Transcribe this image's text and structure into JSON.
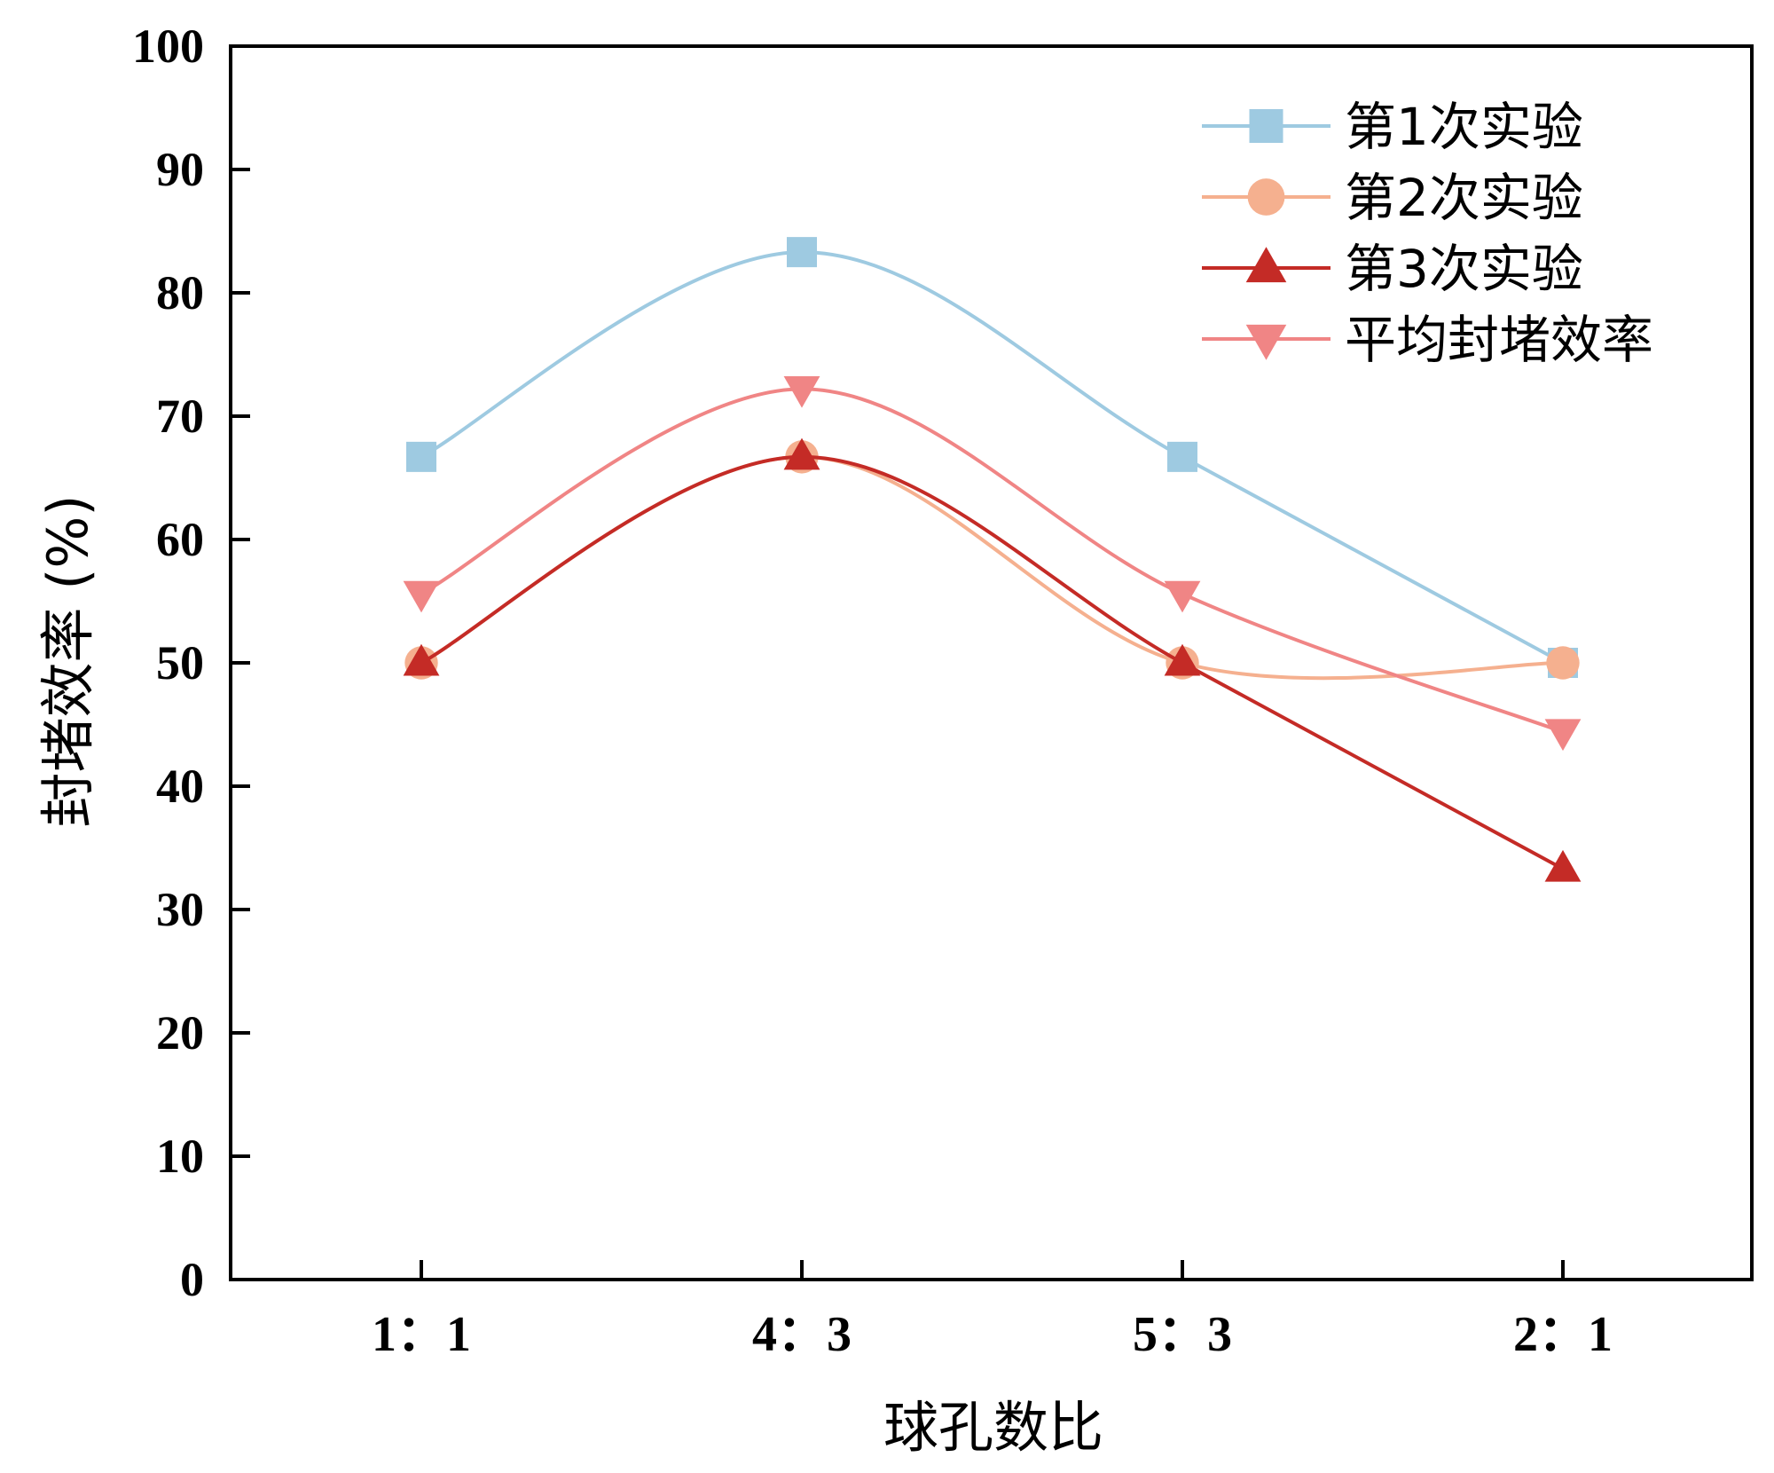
{
  "chart_data": {
    "type": "line",
    "smooth": true,
    "title": "",
    "xlabel": "球孔数比",
    "ylabel": "封堵效率 (%)",
    "categories": [
      "1：1",
      "4：3",
      "5：3",
      "2：1"
    ],
    "ylim": [
      0,
      100
    ],
    "yticks": [
      0,
      10,
      20,
      30,
      40,
      50,
      60,
      70,
      80,
      90,
      100
    ],
    "grid": false,
    "legend_position": "top-right",
    "series": [
      {
        "name": "第1次实验",
        "marker": "square",
        "color": "#9ecae1",
        "values": [
          66.7,
          83.3,
          66.7,
          50.0
        ]
      },
      {
        "name": "第2次实验",
        "marker": "circle",
        "color": "#f5b08f",
        "values": [
          50.0,
          66.7,
          50.0,
          50.0
        ]
      },
      {
        "name": "第3次实验",
        "marker": "triangle-up",
        "color": "#c42b26",
        "values": [
          50.0,
          66.7,
          50.0,
          33.3
        ]
      },
      {
        "name": "平均封堵效率",
        "marker": "triangle-down",
        "color": "#f08585",
        "values": [
          55.6,
          72.2,
          55.6,
          44.4
        ]
      }
    ]
  }
}
